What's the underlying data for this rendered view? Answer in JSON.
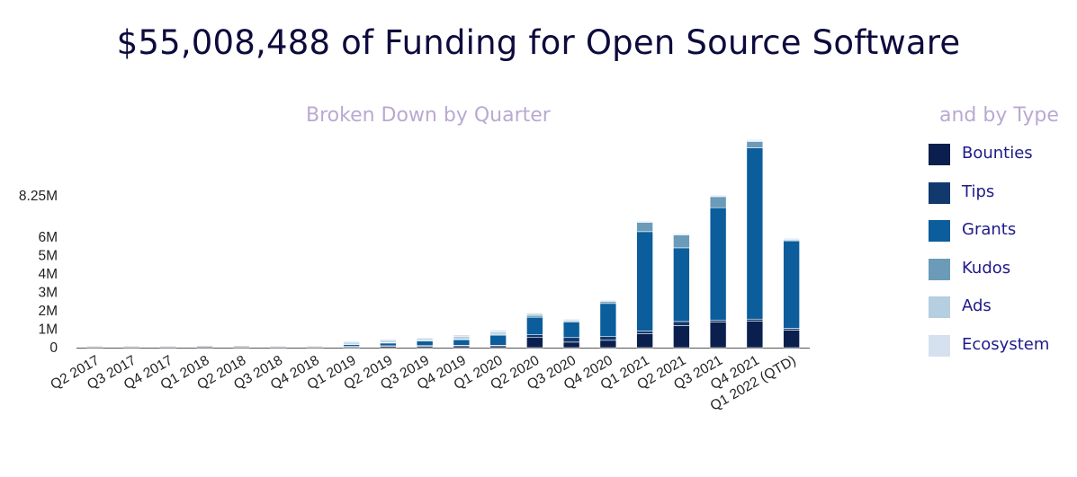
{
  "header": {
    "title": "$55,008,488 of Funding for Open Source Software",
    "subtitle_quarter": "Broken Down by Quarter",
    "subtitle_type": "and by Type"
  },
  "chart_data": {
    "type": "bar",
    "stacked": true,
    "title": "$55,008,488 of Funding for Open Source Software",
    "subtitle": "Broken Down by Quarter",
    "legend_title": "and by Type",
    "xlabel": "",
    "ylabel": "",
    "yticks": [
      0,
      1,
      2,
      3,
      4,
      5,
      6,
      8.25
    ],
    "ytick_labels": [
      "0",
      "1M",
      "2M",
      "3M",
      "4M",
      "5M",
      "6M",
      "8.25M"
    ],
    "ylim": [
      0,
      11.5
    ],
    "units": "USD millions",
    "categories": [
      "Q2 2017",
      "Q3 2017",
      "Q4 2017",
      "Q1 2018",
      "Q2 2018",
      "Q3 2018",
      "Q4 2018",
      "Q1 2019",
      "Q2 2019",
      "Q3 2019",
      "Q4 2019",
      "Q1 2020",
      "Q2 2020",
      "Q3 2020",
      "Q4 2020",
      "Q1 2021",
      "Q2 2021",
      "Q3 2021",
      "Q4 2021",
      "Q1 2022 (QTD)"
    ],
    "series": [
      {
        "name": "Bounties",
        "color": "#0a1f4d",
        "values": [
          0.03,
          0.03,
          0.03,
          0.05,
          0.04,
          0.03,
          0.03,
          0.05,
          0.08,
          0.08,
          0.1,
          0.1,
          0.55,
          0.3,
          0.4,
          0.75,
          1.2,
          1.4,
          1.45,
          0.95
        ]
      },
      {
        "name": "Tips",
        "color": "#12396e",
        "values": [
          0.01,
          0.01,
          0.01,
          0.01,
          0.01,
          0.01,
          0.01,
          0.02,
          0.02,
          0.03,
          0.03,
          0.03,
          0.15,
          0.25,
          0.2,
          0.15,
          0.22,
          0.1,
          0.1,
          0.1
        ]
      },
      {
        "name": "Grants",
        "color": "#0b5d9b",
        "values": [
          0,
          0,
          0,
          0,
          0,
          0,
          0,
          0.1,
          0.15,
          0.25,
          0.3,
          0.55,
          0.95,
          0.85,
          1.8,
          5.4,
          4.0,
          6.1,
          9.3,
          4.75
        ]
      },
      {
        "name": "Kudos",
        "color": "#6b9bb8",
        "values": [
          0,
          0,
          0,
          0,
          0,
          0,
          0,
          0.02,
          0.03,
          0.03,
          0.04,
          0.05,
          0.1,
          0.05,
          0.1,
          0.5,
          0.7,
          0.6,
          0.35,
          0.05
        ]
      },
      {
        "name": "Ads",
        "color": "#b5cee0",
        "values": [
          0,
          0,
          0,
          0,
          0,
          0,
          0,
          0.1,
          0.1,
          0.1,
          0.15,
          0.12,
          0.1,
          0.05,
          0.05,
          0.05,
          0.05,
          0.05,
          0.05,
          0.05
        ]
      },
      {
        "name": "Ecosystem",
        "color": "#d6e1ef",
        "values": [
          0,
          0,
          0,
          0,
          0,
          0,
          0,
          0.06,
          0.07,
          0.06,
          0.08,
          0.1,
          0.05,
          0.05,
          0.05,
          0.05,
          0.05,
          0.05,
          0.05,
          0.05
        ]
      }
    ],
    "legend_position": "right"
  }
}
